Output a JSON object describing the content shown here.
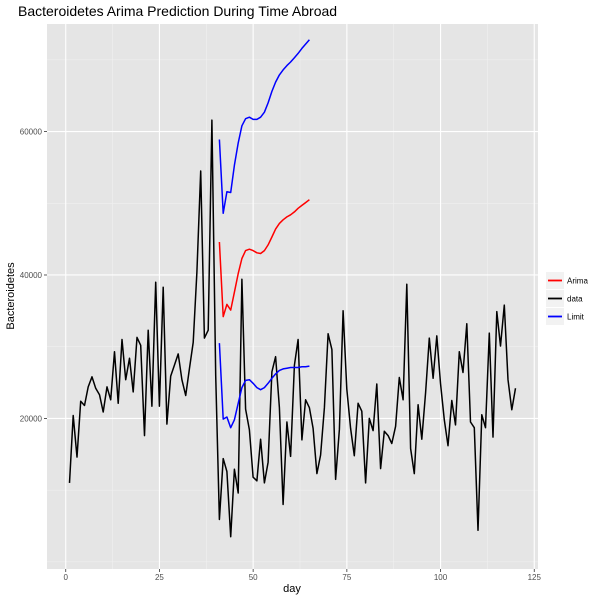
{
  "chart_data": {
    "type": "line",
    "title": "Bacteroidetes Arima Prediction During Time Abroad",
    "xlabel": "day",
    "ylabel": "Bacteroidetes",
    "xlim": [
      -5,
      126
    ],
    "ylim": [
      -1000,
      75000
    ],
    "x_ticks": [
      0,
      25,
      50,
      75,
      100,
      125
    ],
    "y_ticks": [
      20000,
      40000,
      60000
    ],
    "grid": true,
    "legend_position": "right",
    "colors": {
      "panel_bg": "#e5e5e5",
      "grid_major": "#ffffff",
      "grid_minor": "#f0f0f0"
    },
    "series": [
      {
        "name": "Arima",
        "color": "#ff0000",
        "x": [
          41,
          42,
          43,
          44,
          45,
          46,
          47,
          48,
          49,
          50,
          51,
          52,
          53,
          54,
          55,
          56,
          57,
          58,
          59,
          60,
          61,
          62,
          63,
          64,
          65
        ],
        "y": [
          44600,
          34200,
          35900,
          35100,
          37600,
          40200,
          42300,
          43400,
          43600,
          43400,
          43100,
          43000,
          43400,
          44200,
          45300,
          46400,
          47200,
          47700,
          48100,
          48400,
          48800,
          49300,
          49700,
          50100,
          50500
        ]
      },
      {
        "name": "data",
        "color": "#000000",
        "x": [
          1,
          2,
          3,
          4,
          5,
          6,
          7,
          8,
          9,
          10,
          11,
          12,
          13,
          14,
          15,
          16,
          17,
          18,
          19,
          20,
          21,
          22,
          23,
          24,
          25,
          26,
          27,
          28,
          29,
          30,
          31,
          32,
          33,
          34,
          35,
          36,
          37,
          38,
          39,
          40,
          41,
          42,
          43,
          44,
          45,
          46,
          47,
          48,
          49,
          50,
          51,
          52,
          53,
          54,
          55,
          56,
          57,
          58,
          59,
          60,
          61,
          62,
          63,
          64,
          65,
          66,
          67,
          68,
          69,
          70,
          71,
          72,
          73,
          74,
          75,
          76,
          77,
          78,
          79,
          80,
          81,
          82,
          83,
          84,
          85,
          86,
          87,
          88,
          89,
          90,
          91,
          92,
          93,
          94,
          95,
          96,
          97,
          98,
          99,
          100,
          101,
          102,
          103,
          104,
          105,
          106,
          107,
          108,
          109,
          110,
          111,
          112,
          113,
          114,
          115,
          116,
          117,
          118,
          119,
          120
        ],
        "y": [
          11000,
          20400,
          14600,
          22400,
          21800,
          24400,
          25800,
          24200,
          23300,
          20900,
          24400,
          22600,
          29300,
          22100,
          31000,
          25400,
          28400,
          23700,
          31300,
          30200,
          17600,
          32300,
          21700,
          39000,
          21700,
          38300,
          19200,
          25900,
          27400,
          29000,
          25400,
          23200,
          26900,
          30600,
          40400,
          54500,
          31200,
          32300,
          61600,
          26000,
          5900,
          14400,
          12600,
          3500,
          12900,
          9600,
          39400,
          21300,
          18400,
          11800,
          11300,
          17100,
          11000,
          13900,
          26500,
          28600,
          21500,
          8000,
          19500,
          14700,
          27400,
          31000,
          17000,
          22600,
          21500,
          18600,
          12300,
          14900,
          21500,
          31800,
          29600,
          11500,
          18500,
          35000,
          24100,
          18600,
          14800,
          22100,
          21000,
          11000,
          20000,
          18300,
          24800,
          13000,
          18200,
          17600,
          16500,
          18900,
          25700,
          22600,
          38700,
          15800,
          12300,
          21900,
          17100,
          23600,
          31200,
          25600,
          31500,
          24900,
          19800,
          16200,
          22500,
          19100,
          29300,
          26400,
          33200,
          19500,
          18700,
          4400,
          20500,
          18700,
          31900,
          17400,
          34900,
          30100,
          35800,
          25400,
          21200,
          24200
        ]
      },
      {
        "name": "Limit",
        "color": "#0000ff",
        "x": [
          41,
          42,
          43,
          44,
          45,
          46,
          47,
          48,
          49,
          50,
          51,
          52,
          53,
          54,
          55,
          56,
          57,
          58,
          59,
          60,
          61,
          62,
          63,
          64,
          65
        ],
        "y": [
          30500,
          19900,
          20200,
          18700,
          19800,
          22100,
          24300,
          25300,
          25400,
          24900,
          24300,
          24000,
          24300,
          24900,
          25600,
          26200,
          26700,
          26900,
          27000,
          27100,
          27100,
          27100,
          27200,
          27200,
          27300
        ]
      },
      {
        "name": "Limit",
        "color": "#0000ff",
        "x": [
          41,
          42,
          43,
          44,
          45,
          46,
          47,
          48,
          49,
          50,
          51,
          52,
          53,
          54,
          55,
          56,
          57,
          58,
          59,
          60,
          61,
          62,
          63,
          64,
          65
        ],
        "y": [
          58900,
          48600,
          51600,
          51500,
          55300,
          58400,
          60800,
          61800,
          62000,
          61700,
          61700,
          62000,
          62700,
          64000,
          65600,
          66900,
          67900,
          68600,
          69200,
          69700,
          70300,
          70900,
          71600,
          72200,
          72800
        ]
      }
    ],
    "legend": [
      {
        "label": "Arima",
        "color": "#ff0000"
      },
      {
        "label": "data",
        "color": "#000000"
      },
      {
        "label": "Limit",
        "color": "#0000ff"
      }
    ]
  }
}
